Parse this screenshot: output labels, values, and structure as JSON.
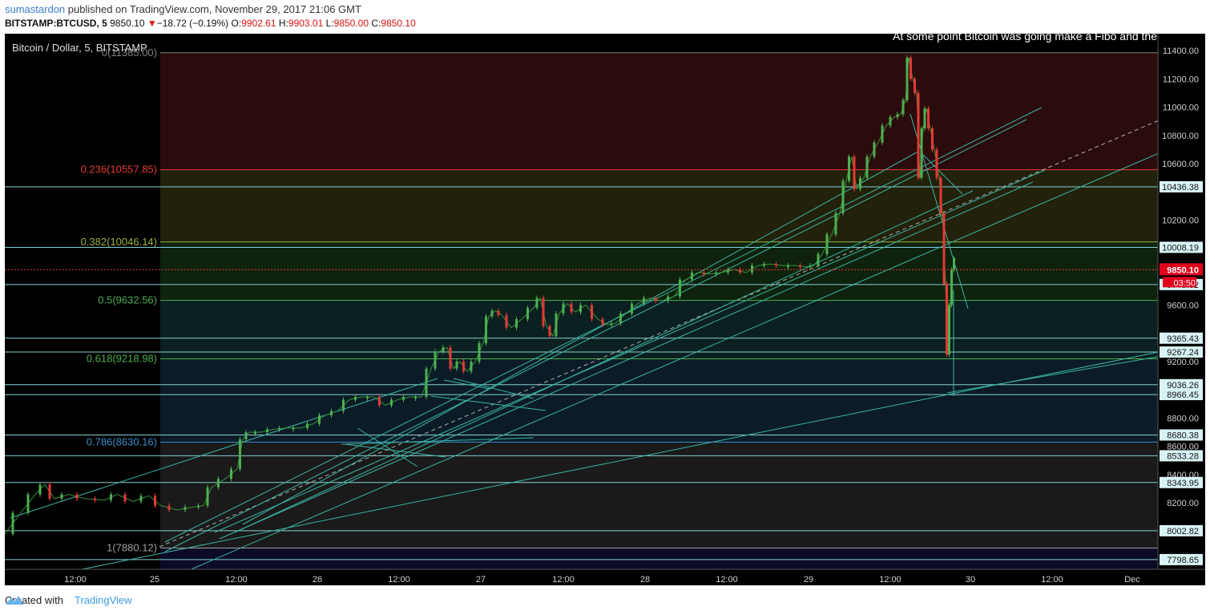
{
  "header": {
    "author": "sumastardon",
    "published_text": "published on TradingView.com, November 29, 2017 21:06 GMT",
    "symbol": "BITSTAMP:BTCUSD, 5",
    "last": "9850.10",
    "change": "−18.72 (−0.19%)",
    "open_label": "O:",
    "open": "9902.61",
    "high_label": "H:",
    "high": "9903.01",
    "low_label": "L:",
    "low": "9850.00",
    "close_label": "C:",
    "close": "9850.10"
  },
  "chart_title": "Bitcoin / Dollar, 5, BITSTAMP",
  "annotation_text": "At some point Bitcoin was going make a Fibo and the",
  "footer": {
    "created_with": "Created with",
    "brand": "TradingView"
  },
  "colors": {
    "background": "#000000",
    "candle_up": "#4caf50",
    "candle_down": "#e53935",
    "hline": "#86cfd4",
    "trendline": "#3bb3a3",
    "price_label_bg": "#d9f3f5",
    "current_price_bg": "#e0001b"
  },
  "chart_data": {
    "type": "candlestick",
    "symbol": "BTCUSD",
    "interval": "5",
    "ylim": [
      7730,
      11520
    ],
    "y_ticks": [
      7800,
      8000,
      8200,
      8400,
      8600,
      8800,
      9000,
      9200,
      9400,
      9600,
      9800,
      10000,
      10200,
      10400,
      10600,
      10800,
      11000,
      11200,
      11400
    ],
    "y_tick_labels": [
      "",
      "",
      "8200.00",
      "8400.00",
      "8600.00",
      "8800.00",
      "",
      "9200.00",
      "",
      "9600.00",
      "",
      "",
      "10200.00",
      "",
      "10600.00",
      "10800.00",
      "11000.00",
      "11200.00",
      "11400.00"
    ],
    "x_labels": [
      "12:00",
      "25",
      "12:00",
      "26",
      "12:00",
      "27",
      "12:00",
      "28",
      "12:00",
      "29",
      "12:00",
      "30",
      "12:00",
      "Dec"
    ],
    "fib_levels": [
      {
        "ratio": "0",
        "price": 11385.0,
        "label": "0(11385.00)",
        "color": "#808080",
        "fill": "#2b0c0c"
      },
      {
        "ratio": "0.236",
        "price": 10557.85,
        "label": "0.236(10557.85)",
        "color": "#e53935",
        "fill": "#22210c"
      },
      {
        "ratio": "0.382",
        "price": 10046.14,
        "label": "0.382(10046.14)",
        "color": "#9bb33b",
        "fill": "#0e220d"
      },
      {
        "ratio": "0.5",
        "price": 9632.56,
        "label": "0.5(9632.56)",
        "color": "#4caf50",
        "fill": "#0b2020"
      },
      {
        "ratio": "0.618",
        "price": 9218.98,
        "label": "0.618(9218.98)",
        "color": "#4caf50",
        "fill": "#0b1c27"
      },
      {
        "ratio": "0.786",
        "price": 8630.16,
        "label": "0.786(8630.16)",
        "color": "#3b8fc8",
        "fill": "#1a1a1a"
      },
      {
        "ratio": "1",
        "price": 7880.12,
        "label": "1(7880.12)",
        "color": "#9e9e9e",
        "fill": "#0b0b26"
      }
    ],
    "horizontal_levels": [
      10436.38,
      10008.19,
      9745.02,
      9365.43,
      9267.24,
      9036.26,
      8966.45,
      8680.38,
      8533.28,
      8343.95,
      8002.82,
      7798.65
    ],
    "price_labels": [
      "10436.38",
      "10008.19",
      "9745.02",
      "9365.43",
      "9267.24",
      "9036.26",
      "8966.45",
      "8680.38",
      "8533.28",
      "8343.95",
      "8002.82",
      "7798.65"
    ],
    "current_price": {
      "value": 9850.1,
      "label": "9850.10",
      "countdown": "03:50"
    },
    "price_path": [
      [
        0,
        7980
      ],
      [
        20,
        8130
      ],
      [
        38,
        8260
      ],
      [
        50,
        8330
      ],
      [
        62,
        8230
      ],
      [
        80,
        8260
      ],
      [
        100,
        8230
      ],
      [
        125,
        8220
      ],
      [
        140,
        8260
      ],
      [
        160,
        8210
      ],
      [
        180,
        8250
      ],
      [
        195,
        8180
      ],
      [
        215,
        8150
      ],
      [
        235,
        8170
      ],
      [
        248,
        8180
      ],
      [
        258,
        8310
      ],
      [
        275,
        8370
      ],
      [
        290,
        8440
      ],
      [
        297,
        8650
      ],
      [
        305,
        8700
      ],
      [
        320,
        8700
      ],
      [
        335,
        8720
      ],
      [
        350,
        8730
      ],
      [
        370,
        8730
      ],
      [
        385,
        8760
      ],
      [
        400,
        8820
      ],
      [
        415,
        8850
      ],
      [
        430,
        8930
      ],
      [
        445,
        8950
      ],
      [
        460,
        8950
      ],
      [
        475,
        8890
      ],
      [
        490,
        8930
      ],
      [
        505,
        8950
      ],
      [
        520,
        8950
      ],
      [
        532,
        9150
      ],
      [
        542,
        9270
      ],
      [
        552,
        9300
      ],
      [
        560,
        9150
      ],
      [
        568,
        9200
      ],
      [
        577,
        9130
      ],
      [
        587,
        9200
      ],
      [
        597,
        9330
      ],
      [
        604,
        9520
      ],
      [
        612,
        9560
      ],
      [
        620,
        9530
      ],
      [
        632,
        9440
      ],
      [
        645,
        9500
      ],
      [
        660,
        9580
      ],
      [
        668,
        9650
      ],
      [
        676,
        9450
      ],
      [
        684,
        9380
      ],
      [
        692,
        9540
      ],
      [
        702,
        9610
      ],
      [
        712,
        9550
      ],
      [
        725,
        9600
      ],
      [
        740,
        9500
      ],
      [
        752,
        9460
      ],
      [
        762,
        9470
      ],
      [
        775,
        9540
      ],
      [
        790,
        9610
      ],
      [
        805,
        9650
      ],
      [
        820,
        9630
      ],
      [
        835,
        9660
      ],
      [
        850,
        9780
      ],
      [
        865,
        9830
      ],
      [
        880,
        9820
      ],
      [
        895,
        9830
      ],
      [
        910,
        9850
      ],
      [
        925,
        9830
      ],
      [
        940,
        9880
      ],
      [
        955,
        9890
      ],
      [
        970,
        9880
      ],
      [
        985,
        9880
      ],
      [
        1000,
        9870
      ],
      [
        1010,
        9880
      ],
      [
        1020,
        9960
      ],
      [
        1032,
        10100
      ],
      [
        1042,
        10250
      ],
      [
        1050,
        10480
      ],
      [
        1057,
        10650
      ],
      [
        1063,
        10420
      ],
      [
        1072,
        10500
      ],
      [
        1080,
        10650
      ],
      [
        1090,
        10750
      ],
      [
        1100,
        10870
      ],
      [
        1110,
        10930
      ],
      [
        1118,
        10950
      ],
      [
        1124,
        11050
      ],
      [
        1128,
        11350
      ],
      [
        1133,
        11200
      ],
      [
        1138,
        11100
      ],
      [
        1142,
        10500
      ],
      [
        1146,
        10850
      ],
      [
        1150,
        10990
      ],
      [
        1155,
        10850
      ],
      [
        1160,
        10700
      ],
      [
        1166,
        10500
      ],
      [
        1170,
        10250
      ],
      [
        1174,
        9750
      ],
      [
        1177,
        9250
      ],
      [
        1180,
        9600
      ],
      [
        1183,
        9850
      ],
      [
        1186,
        9930
      ]
    ],
    "trend_lines": [
      [
        [
          200,
          634
        ],
        [
          1294,
          92
        ]
      ],
      [
        [
          200,
          646
        ],
        [
          1275,
          107
        ]
      ],
      [
        [
          262,
          622
        ],
        [
          1298,
          170
        ]
      ],
      [
        [
          268,
          630
        ],
        [
          1283,
          185
        ]
      ],
      [
        [
          287,
          622
        ],
        [
          1208,
          196
        ]
      ],
      [
        [
          297,
          612
        ],
        [
          1138,
          148
        ]
      ],
      [
        [
          193,
          685
        ],
        [
          1445,
          147
        ]
      ],
      [
        [
          7,
          686
        ],
        [
          1445,
          396
        ]
      ],
      [
        [
          1176,
          448
        ],
        [
          1444,
          402
        ]
      ],
      [
        [
          7,
          604
        ],
        [
          540,
          430
        ]
      ],
      [
        [
          420,
          512
        ],
        [
          660,
          504
        ]
      ],
      [
        [
          425,
          512
        ],
        [
          550,
          528
        ]
      ],
      [
        [
          440,
          492
        ],
        [
          515,
          540
        ]
      ],
      [
        [
          532,
          452
        ],
        [
          675,
          470
        ]
      ],
      [
        [
          548,
          432
        ],
        [
          605,
          443
        ]
      ],
      [
        [
          560,
          430
        ],
        [
          660,
          455
        ]
      ],
      [
        [
          1130,
          100
        ],
        [
          1202,
          343
        ]
      ],
      [
        [
          1145,
          150
        ],
        [
          1195,
          200
        ]
      ],
      [
        [
          1184,
          320
        ],
        [
          1184,
          452
        ]
      ]
    ]
  }
}
